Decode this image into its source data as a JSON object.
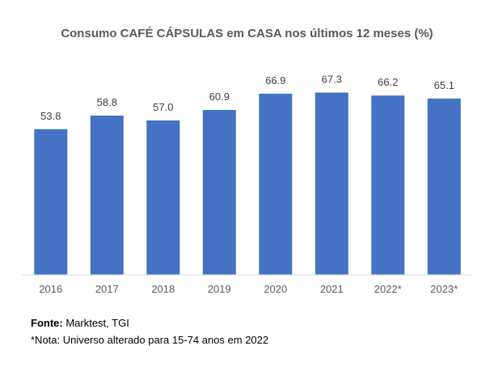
{
  "chart_data": {
    "type": "bar",
    "title": "Consumo CAFÉ CÁPSULAS em CASA nos últimos 12 meses (%)",
    "categories": [
      "2016",
      "2017",
      "2018",
      "2019",
      "2020",
      "2021",
      "2022*",
      "2023*"
    ],
    "values": [
      53.8,
      58.8,
      57.0,
      60.9,
      66.9,
      67.3,
      66.2,
      65.1
    ],
    "value_labels": [
      "53.8",
      "58.8",
      "57.0",
      "60.9",
      "66.9",
      "67.3",
      "66.2",
      "65.1"
    ],
    "xlabel": "",
    "ylabel": "",
    "ylim": [
      0,
      70
    ],
    "grid": false,
    "bar_color": "#4472C4"
  },
  "footer": {
    "source_label": "Fonte:",
    "source_text": " Marktest, TGI",
    "note": "*Nota: Universo alterado para 15-74 anos em 2022"
  }
}
